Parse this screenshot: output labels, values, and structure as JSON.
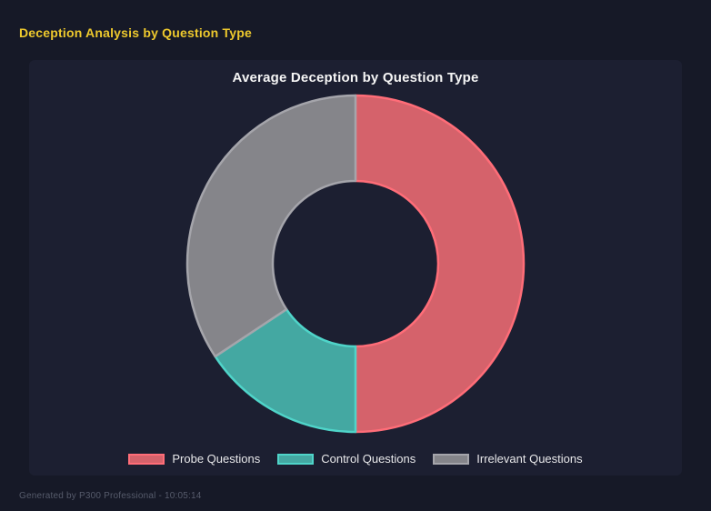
{
  "header": {
    "title": "Deception Analysis by Question Type",
    "title_color": "#eec92d"
  },
  "chart": {
    "title": "Average Deception by Question Type"
  },
  "chart_data": {
    "type": "pie",
    "variant": "doughnut",
    "title": "Average Deception by Question Type",
    "categories": [
      "Probe Questions",
      "Control Questions",
      "Irrelevant Questions"
    ],
    "values_percent": [
      50,
      15.7,
      34.3
    ],
    "start_angle_deg": 0,
    "direction": "clockwise",
    "cutout_ratio": 0.49,
    "legend_position": "bottom",
    "segments": [
      {
        "label": "Probe Questions",
        "percent": 50,
        "fill": "#d5626b",
        "border": "#ff6d78"
      },
      {
        "label": "Control Questions",
        "percent": 15.7,
        "fill": "#44a8a2",
        "border": "#4fd4c9"
      },
      {
        "label": "Irrelevant Questions",
        "percent": 34.3,
        "fill": "#85858a",
        "border": "#a5a5ab"
      }
    ],
    "background_panel": "#1c1f31",
    "background_page": "#161927"
  },
  "footer": {
    "text": "Generated by P300 Professional - 10:05:14"
  }
}
